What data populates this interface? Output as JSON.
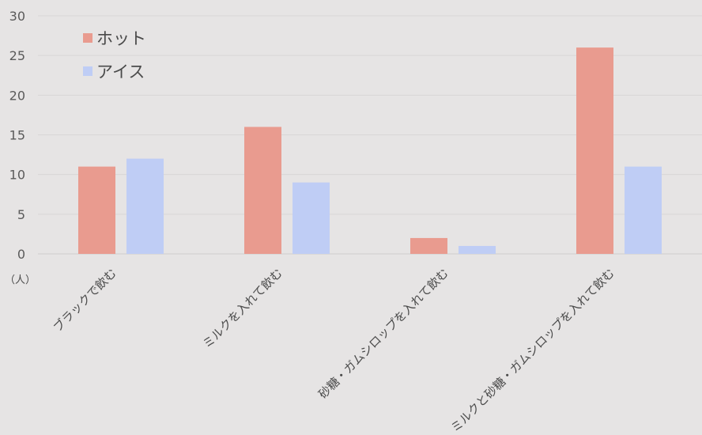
{
  "chart_data": {
    "type": "bar",
    "categories": [
      "ブラックで飲む",
      "ミルクを入れて飲む",
      "砂糖・ガムシロップを入れて飲む",
      "ミルクと砂糖・ガムシロップを入れて飲む"
    ],
    "series": [
      {
        "name": "ホット",
        "values": [
          11,
          16,
          2,
          26
        ],
        "color": "#e99b8f"
      },
      {
        "name": "アイス",
        "values": [
          12,
          9,
          1,
          11
        ],
        "color": "#bfcdf5"
      }
    ],
    "y_ticks": [
      0,
      5,
      10,
      15,
      20,
      25,
      30
    ],
    "ylim": [
      0,
      30
    ],
    "y_unit_label": "（人）",
    "grid": true,
    "legend_position": "top-left",
    "background": "#e6e4e4"
  }
}
